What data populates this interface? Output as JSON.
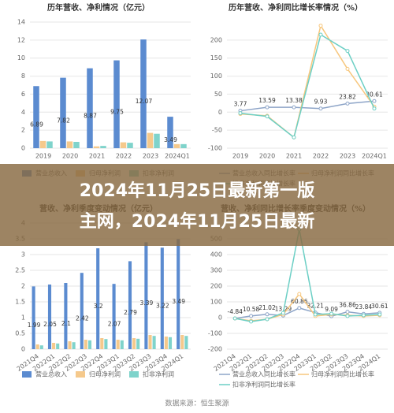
{
  "banner": {
    "lines": [
      "2024年11月25日最新第一版",
      "主网，2024年11月25日最新"
    ]
  },
  "footer": "数据来源：恒生聚源",
  "chart_data": [
    {
      "type": "bar",
      "title": "历年营收、净利情况（亿元）",
      "categories": [
        "2019",
        "2020",
        "2021",
        "2022",
        "2023",
        "2024Q1"
      ],
      "ylim": [
        0,
        14
      ],
      "yticks": [
        0,
        2,
        4,
        6,
        8,
        10,
        12,
        14
      ],
      "grid": true,
      "series": [
        {
          "name": "营业总收入",
          "color": "#5b8bd0",
          "show_values": true,
          "values": [
            6.89,
            7.82,
            8.87,
            9.75,
            12.07,
            3.49
          ]
        },
        {
          "name": "归母净利润",
          "color": "#f5c98c",
          "values": [
            0.8,
            0.75,
            0.2,
            0.65,
            1.7,
            0.45
          ]
        },
        {
          "name": "扣非净利润",
          "color": "#7fd3cb",
          "values": [
            0.75,
            0.7,
            0.25,
            0.6,
            1.6,
            0.45
          ]
        }
      ]
    },
    {
      "type": "line",
      "title": "历年营收、净利同比增长率情况（%）",
      "categories": [
        "2019",
        "2020",
        "2021",
        "2022",
        "2023",
        "2024Q1"
      ],
      "ylim": [
        -100,
        250
      ],
      "yticks": [
        -100,
        -50,
        0,
        50,
        100,
        150,
        200
      ],
      "grid": true,
      "series": [
        {
          "name": "营业总收入同比增长率",
          "color": "#8ea5c8",
          "show_values": true,
          "values": [
            3.77,
            13.59,
            13.38,
            9.93,
            23.82,
            30.61
          ]
        },
        {
          "name": "归母净利润同比增长率",
          "color": "#f7c77e",
          "values": [
            -5,
            -10,
            -70,
            240,
            120,
            15
          ]
        },
        {
          "name": "扣非净利润同比增长率",
          "color": "#6ccfc5",
          "values": [
            -3,
            -12,
            -70,
            215,
            170,
            10
          ]
        }
      ]
    },
    {
      "type": "bar",
      "title": "营收、净利季度变动情况（亿元）",
      "categories": [
        "2021Q4",
        "2022Q1",
        "2022Q2",
        "2022Q3",
        "2022Q4",
        "2023Q1",
        "2023Q2",
        "2023Q3",
        "2023Q4",
        "2024Q1"
      ],
      "ylim": [
        0,
        4
      ],
      "yticks": [
        0,
        0.5,
        1,
        1.5,
        2,
        2.5,
        3,
        3.5,
        4
      ],
      "grid": true,
      "series": [
        {
          "name": "营业总收入",
          "color": "#5b8bd0",
          "show_values": true,
          "values": [
            1.99,
            2.05,
            2.1,
            2.42,
            3.2,
            2.07,
            2.79,
            3.39,
            3.22,
            3.49
          ]
        },
        {
          "name": "归母净利润",
          "color": "#f5c98c",
          "values": [
            0.15,
            0.2,
            0.25,
            0.3,
            0.35,
            0.3,
            0.35,
            0.45,
            0.4,
            0.45
          ]
        },
        {
          "name": "扣非净利润",
          "color": "#7fd3cb",
          "values": [
            0.12,
            0.18,
            0.22,
            0.28,
            0.32,
            0.28,
            0.33,
            0.42,
            0.38,
            0.42
          ]
        }
      ]
    },
    {
      "type": "line",
      "title": "营收、净利同比增长率季度变动情况（%）",
      "categories": [
        "2021Q4",
        "2022Q1",
        "2022Q2",
        "2022Q3",
        "2022Q4",
        "2023Q1",
        "2023Q2",
        "2023Q3",
        "2023Q4",
        "2024Q1"
      ],
      "ylim": [
        -200,
        600
      ],
      "yticks": [
        -200,
        -100,
        0,
        100,
        200,
        300,
        400,
        500
      ],
      "grid": true,
      "series": [
        {
          "name": "营业总收入同比增长率",
          "color": "#8ea5c8",
          "show_values": true,
          "values": [
            -4.84,
            10.58,
            21.02,
            13.29,
            60.86,
            32.21,
            9.09,
            36.86,
            23.84,
            30.61
          ]
        },
        {
          "name": "归母净利润同比增长率",
          "color": "#f7c77e",
          "values": [
            -5,
            -20,
            -10,
            20,
            150,
            10,
            20,
            15,
            10,
            15
          ]
        },
        {
          "name": "扣非净利润同比增长率",
          "color": "#6ccfc5",
          "values": [
            -5,
            -25,
            -10,
            30,
            560,
            20,
            25,
            10,
            15,
            20
          ]
        }
      ]
    }
  ]
}
